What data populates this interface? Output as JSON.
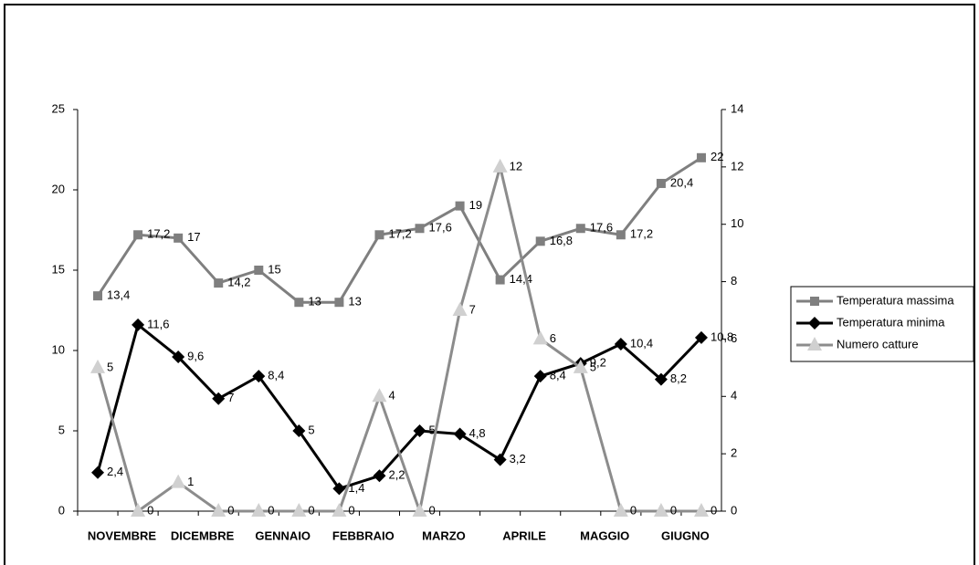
{
  "chart_data": {
    "type": "line",
    "categories": [
      "NOVEMBRE",
      null,
      "DICEMBRE",
      null,
      "GENNAIO",
      null,
      "FEBBRAIO",
      null,
      "MARZO",
      null,
      "APRILE",
      null,
      "MAGGIO",
      null,
      "GIUGNO",
      null
    ],
    "ylim": [
      0,
      25
    ],
    "yticks": [
      0,
      5,
      10,
      15,
      20,
      25
    ],
    "y2lim": [
      0,
      14
    ],
    "y2ticks": [
      0,
      2,
      4,
      6,
      8,
      10,
      12,
      14
    ],
    "legend": "right",
    "series": [
      {
        "name": "Temperatura massima",
        "color": "#7f7f7f",
        "marker": "square",
        "values": [
          13.4,
          17.2,
          17,
          14.2,
          15,
          13,
          13,
          17.2,
          17.6,
          19,
          14.4,
          16.8,
          17.6,
          17.2,
          20.4,
          22
        ],
        "value_labels": [
          "13,4",
          "17,2",
          "17",
          "14,2",
          "15",
          "13",
          "13",
          "17,2",
          "17,6",
          "19",
          "14,4",
          "16,8",
          "17,6",
          "17,2",
          "20,4",
          "22"
        ]
      },
      {
        "name": "Temperatura minima",
        "color": "#000000",
        "marker": "diamond",
        "values": [
          2.4,
          11.6,
          9.6,
          7,
          8.4,
          5,
          1.4,
          2.2,
          5,
          4.8,
          3.2,
          8.4,
          9.2,
          10.4,
          8.2,
          10.8
        ],
        "value_labels": [
          "2,4",
          "11,6",
          "9,6",
          "7",
          "8,4",
          "5",
          "1,4",
          "2,2",
          "5",
          "4,8",
          "3,2",
          "8,4",
          "9,2",
          "10,4",
          "8,2",
          "10,8"
        ]
      },
      {
        "name": "Numero catture",
        "color": "#8c8c8c",
        "marker": "triangle",
        "axis": "y2",
        "values": [
          5,
          0,
          1,
          0,
          0,
          0,
          0,
          4,
          0,
          7,
          12,
          6,
          5,
          0,
          0,
          0
        ]
      }
    ]
  }
}
